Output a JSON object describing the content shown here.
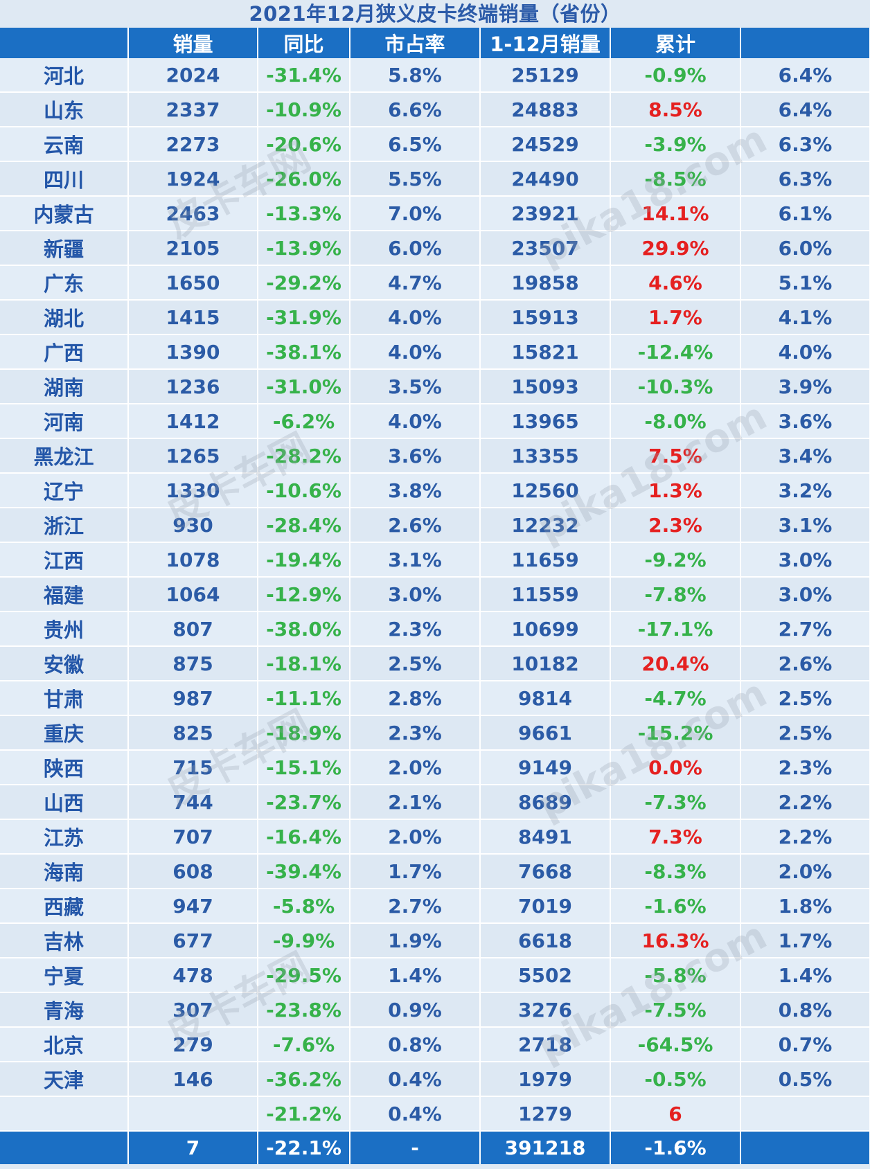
{
  "title": "2021年12月狭义皮卡终端销量（省份）",
  "headers": [
    "",
    "销量",
    "同比",
    "市占率",
    "1-12月销量",
    "累计",
    ""
  ],
  "rows": [
    {
      "province": "河北",
      "sales": "2024",
      "yoy": "-31.4%",
      "share": "5.8%",
      "ytd": "25129",
      "cum": "-0.9%",
      "cum_neg": true,
      "cum_share": "6.4%"
    },
    {
      "province": "山东",
      "sales": "2337",
      "yoy": "-10.9%",
      "share": "6.6%",
      "ytd": "24883",
      "cum": "8.5%",
      "cum_neg": false,
      "cum_share": "6.4%"
    },
    {
      "province": "云南",
      "sales": "2273",
      "yoy": "-20.6%",
      "share": "6.5%",
      "ytd": "24529",
      "cum": "-3.9%",
      "cum_neg": true,
      "cum_share": "6.3%"
    },
    {
      "province": "四川",
      "sales": "1924",
      "yoy": "-26.0%",
      "share": "5.5%",
      "ytd": "24490",
      "cum": "-8.5%",
      "cum_neg": true,
      "cum_share": "6.3%"
    },
    {
      "province": "内蒙古",
      "sales": "2463",
      "yoy": "-13.3%",
      "share": "7.0%",
      "ytd": "23921",
      "cum": "14.1%",
      "cum_neg": false,
      "cum_share": "6.1%"
    },
    {
      "province": "新疆",
      "sales": "2105",
      "yoy": "-13.9%",
      "share": "6.0%",
      "ytd": "23507",
      "cum": "29.9%",
      "cum_neg": false,
      "cum_share": "6.0%"
    },
    {
      "province": "广东",
      "sales": "1650",
      "yoy": "-29.2%",
      "share": "4.7%",
      "ytd": "19858",
      "cum": "4.6%",
      "cum_neg": false,
      "cum_share": "5.1%"
    },
    {
      "province": "湖北",
      "sales": "1415",
      "yoy": "-31.9%",
      "share": "4.0%",
      "ytd": "15913",
      "cum": "1.7%",
      "cum_neg": false,
      "cum_share": "4.1%"
    },
    {
      "province": "广西",
      "sales": "1390",
      "yoy": "-38.1%",
      "share": "4.0%",
      "ytd": "15821",
      "cum": "-12.4%",
      "cum_neg": true,
      "cum_share": "4.0%"
    },
    {
      "province": "湖南",
      "sales": "1236",
      "yoy": "-31.0%",
      "share": "3.5%",
      "ytd": "15093",
      "cum": "-10.3%",
      "cum_neg": true,
      "cum_share": "3.9%"
    },
    {
      "province": "河南",
      "sales": "1412",
      "yoy": "-6.2%",
      "share": "4.0%",
      "ytd": "13965",
      "cum": "-8.0%",
      "cum_neg": true,
      "cum_share": "3.6%"
    },
    {
      "province": "黑龙江",
      "sales": "1265",
      "yoy": "-28.2%",
      "share": "3.6%",
      "ytd": "13355",
      "cum": "7.5%",
      "cum_neg": false,
      "cum_share": "3.4%"
    },
    {
      "province": "辽宁",
      "sales": "1330",
      "yoy": "-10.6%",
      "share": "3.8%",
      "ytd": "12560",
      "cum": "1.3%",
      "cum_neg": false,
      "cum_share": "3.2%"
    },
    {
      "province": "浙江",
      "sales": "930",
      "yoy": "-28.4%",
      "share": "2.6%",
      "ytd": "12232",
      "cum": "2.3%",
      "cum_neg": false,
      "cum_share": "3.1%"
    },
    {
      "province": "江西",
      "sales": "1078",
      "yoy": "-19.4%",
      "share": "3.1%",
      "ytd": "11659",
      "cum": "-9.2%",
      "cum_neg": true,
      "cum_share": "3.0%"
    },
    {
      "province": "福建",
      "sales": "1064",
      "yoy": "-12.9%",
      "share": "3.0%",
      "ytd": "11559",
      "cum": "-7.8%",
      "cum_neg": true,
      "cum_share": "3.0%"
    },
    {
      "province": "贵州",
      "sales": "807",
      "yoy": "-38.0%",
      "share": "2.3%",
      "ytd": "10699",
      "cum": "-17.1%",
      "cum_neg": true,
      "cum_share": "2.7%"
    },
    {
      "province": "安徽",
      "sales": "875",
      "yoy": "-18.1%",
      "share": "2.5%",
      "ytd": "10182",
      "cum": "20.4%",
      "cum_neg": false,
      "cum_share": "2.6%"
    },
    {
      "province": "甘肃",
      "sales": "987",
      "yoy": "-11.1%",
      "share": "2.8%",
      "ytd": "9814",
      "cum": "-4.7%",
      "cum_neg": true,
      "cum_share": "2.5%"
    },
    {
      "province": "重庆",
      "sales": "825",
      "yoy": "-18.9%",
      "share": "2.3%",
      "ytd": "9661",
      "cum": "-15.2%",
      "cum_neg": true,
      "cum_share": "2.5%"
    },
    {
      "province": "陕西",
      "sales": "715",
      "yoy": "-15.1%",
      "share": "2.0%",
      "ytd": "9149",
      "cum": "0.0%",
      "cum_neg": false,
      "cum_share": "2.3%"
    },
    {
      "province": "山西",
      "sales": "744",
      "yoy": "-23.7%",
      "share": "2.1%",
      "ytd": "8689",
      "cum": "-7.3%",
      "cum_neg": true,
      "cum_share": "2.2%"
    },
    {
      "province": "江苏",
      "sales": "707",
      "yoy": "-16.4%",
      "share": "2.0%",
      "ytd": "8491",
      "cum": "7.3%",
      "cum_neg": false,
      "cum_share": "2.2%"
    },
    {
      "province": "海南",
      "sales": "608",
      "yoy": "-39.4%",
      "share": "1.7%",
      "ytd": "7668",
      "cum": "-8.3%",
      "cum_neg": true,
      "cum_share": "2.0%"
    },
    {
      "province": "西藏",
      "sales": "947",
      "yoy": "-5.8%",
      "share": "2.7%",
      "ytd": "7019",
      "cum": "-1.6%",
      "cum_neg": true,
      "cum_share": "1.8%"
    },
    {
      "province": "吉林",
      "sales": "677",
      "yoy": "-9.9%",
      "share": "1.9%",
      "ytd": "6618",
      "cum": "16.3%",
      "cum_neg": false,
      "cum_share": "1.7%"
    },
    {
      "province": "宁夏",
      "sales": "478",
      "yoy": "-29.5%",
      "share": "1.4%",
      "ytd": "5502",
      "cum": "-5.8%",
      "cum_neg": true,
      "cum_share": "1.4%"
    },
    {
      "province": "青海",
      "sales": "307",
      "yoy": "-23.8%",
      "share": "0.9%",
      "ytd": "3276",
      "cum": "-7.5%",
      "cum_neg": true,
      "cum_share": "0.8%"
    },
    {
      "province": "北京",
      "sales": "279",
      "yoy": "-7.6%",
      "share": "0.8%",
      "ytd": "2718",
      "cum": "-64.5%",
      "cum_neg": true,
      "cum_share": "0.7%"
    },
    {
      "province": "天津",
      "sales": "146",
      "yoy": "-36.2%",
      "share": "0.4%",
      "ytd": "1979",
      "cum": "-0.5%",
      "cum_neg": true,
      "cum_share": "0.5%"
    },
    {
      "province": "",
      "sales": "",
      "yoy": "-21.2%",
      "share": "0.4%",
      "ytd": "1279",
      "cum": "6",
      "cum_neg": false,
      "cum_share": ""
    }
  ],
  "total": {
    "sales": "7",
    "yoy": "-22.1%",
    "share": "-",
    "ytd": "391218",
    "cum": "-1.6%",
    "cum_share": ""
  },
  "watermark": {
    "cn": "皮卡车网",
    "url": "pika18.com"
  }
}
